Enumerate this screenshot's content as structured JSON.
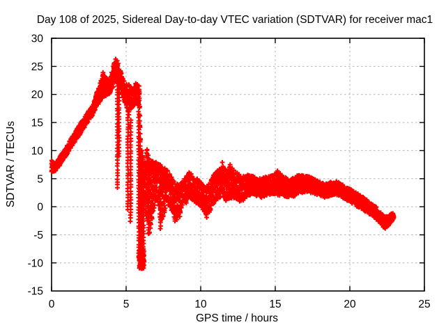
{
  "page": {
    "background": "#ffffff"
  },
  "chart_data": {
    "type": "scatter",
    "title": "Day 108 of 2025, Sidereal Day-to-day VTEC variation (SDTVAR) for receiver mac1",
    "xlabel": "GPS time / hours",
    "ylabel": "SDTVAR / TECUs",
    "marker": "plus",
    "series_color": "#ff0000",
    "grid": true,
    "grid_color": "#b3b3b3",
    "axis_color": "#000000",
    "legend": "none",
    "xlim": [
      0,
      25
    ],
    "ylim": [
      -15,
      30
    ],
    "xticks": [
      0,
      5,
      10,
      15,
      20,
      25
    ],
    "yticks": [
      -15,
      -10,
      -5,
      0,
      5,
      10,
      15,
      20,
      25,
      30
    ],
    "xtick_labels": [
      "0",
      "5",
      "10",
      "15",
      "20",
      "25"
    ],
    "ytick_labels": [
      "-15",
      "-10",
      "-5",
      "0",
      "5",
      "10",
      "15",
      "20",
      "25",
      "30"
    ],
    "x_start": 0.0,
    "x_end": 22.95,
    "band_envelope": [
      [
        0.0,
        6.2,
        8.3
      ],
      [
        0.25,
        6.3,
        7.7
      ],
      [
        0.5,
        7.2,
        8.7
      ],
      [
        0.75,
        8.2,
        9.7
      ],
      [
        1.0,
        9.2,
        10.7
      ],
      [
        1.25,
        10.3,
        11.9
      ],
      [
        1.5,
        11.3,
        13.0
      ],
      [
        1.75,
        12.3,
        14.1
      ],
      [
        2.0,
        13.3,
        15.1
      ],
      [
        2.25,
        14.3,
        16.1
      ],
      [
        2.5,
        15.3,
        17.1
      ],
      [
        2.75,
        16.3,
        18.1
      ],
      [
        3.0,
        17.5,
        20.2
      ],
      [
        3.2,
        18.5,
        21.5
      ],
      [
        3.45,
        19.5,
        23.8
      ],
      [
        3.7,
        19.8,
        23.0
      ],
      [
        3.9,
        20.0,
        22.4
      ],
      [
        4.1,
        21.0,
        24.6
      ],
      [
        4.25,
        22.0,
        26.4
      ],
      [
        4.4,
        22.0,
        26.0
      ],
      [
        4.55,
        21.0,
        24.8
      ],
      [
        4.75,
        19.8,
        23.2
      ],
      [
        5.0,
        17.8,
        21.8
      ],
      [
        5.2,
        16.0,
        21.8
      ],
      [
        5.45,
        17.2,
        21.2
      ],
      [
        5.65,
        18.8,
        22.0
      ],
      [
        5.88,
        17.5,
        21.5
      ],
      [
        6.0,
        3.0,
        11.0
      ],
      [
        6.12,
        1.0,
        9.0
      ],
      [
        6.25,
        0.0,
        8.5
      ],
      [
        6.4,
        -2.5,
        10.5
      ],
      [
        6.55,
        -4.8,
        9.0
      ],
      [
        6.7,
        -3.0,
        8.5
      ],
      [
        6.9,
        0.0,
        8.0
      ],
      [
        7.1,
        1.0,
        8.5
      ],
      [
        7.3,
        -3.8,
        7.5
      ],
      [
        7.5,
        -2.0,
        7.0
      ],
      [
        7.7,
        0.5,
        7.5
      ],
      [
        7.9,
        0.0,
        6.0
      ],
      [
        8.1,
        -1.5,
        5.0
      ],
      [
        8.3,
        -2.8,
        4.2
      ],
      [
        8.55,
        -2.2,
        4.0
      ],
      [
        8.8,
        -0.5,
        4.5
      ],
      [
        9.0,
        0.5,
        5.5
      ],
      [
        9.25,
        1.5,
        6.3
      ],
      [
        9.5,
        1.0,
        5.5
      ],
      [
        9.75,
        0.5,
        5.0
      ],
      [
        10.0,
        0.0,
        4.5
      ],
      [
        10.2,
        -1.0,
        4.0
      ],
      [
        10.4,
        -1.9,
        3.5
      ],
      [
        10.6,
        -1.0,
        4.5
      ],
      [
        10.8,
        0.0,
        5.5
      ],
      [
        11.0,
        1.0,
        6.2
      ],
      [
        11.2,
        1.5,
        6.8
      ],
      [
        11.45,
        1.5,
        7.4
      ],
      [
        11.7,
        1.0,
        6.5
      ],
      [
        12.0,
        1.5,
        7.3
      ],
      [
        12.25,
        1.5,
        6.5
      ],
      [
        12.5,
        1.0,
        6.0
      ],
      [
        12.75,
        0.8,
        5.5
      ],
      [
        13.0,
        1.5,
        5.5
      ],
      [
        13.25,
        2.0,
        5.8
      ],
      [
        13.5,
        2.0,
        5.5
      ],
      [
        13.75,
        1.8,
        5.2
      ],
      [
        14.0,
        1.5,
        5.0
      ],
      [
        14.25,
        1.8,
        5.2
      ],
      [
        14.5,
        2.0,
        5.5
      ],
      [
        14.75,
        2.2,
        5.6
      ],
      [
        15.0,
        2.3,
        5.9
      ],
      [
        15.2,
        2.0,
        6.3
      ],
      [
        15.5,
        2.0,
        5.5
      ],
      [
        15.75,
        1.8,
        5.2
      ],
      [
        16.0,
        1.5,
        5.0
      ],
      [
        16.25,
        1.8,
        5.2
      ],
      [
        16.5,
        2.2,
        5.6
      ],
      [
        16.75,
        2.4,
        5.6
      ],
      [
        17.0,
        2.6,
        5.6
      ],
      [
        17.25,
        2.6,
        5.4
      ],
      [
        17.5,
        2.4,
        5.1
      ],
      [
        17.75,
        2.2,
        4.8
      ],
      [
        18.0,
        2.0,
        4.5
      ],
      [
        18.25,
        1.6,
        4.2
      ],
      [
        18.5,
        1.8,
        4.2
      ],
      [
        18.75,
        2.0,
        4.5
      ],
      [
        19.0,
        2.2,
        4.6
      ],
      [
        19.25,
        2.0,
        4.4
      ],
      [
        19.5,
        1.6,
        4.0
      ],
      [
        19.75,
        1.2,
        3.6
      ],
      [
        20.0,
        0.8,
        3.2
      ],
      [
        20.25,
        0.4,
        2.8
      ],
      [
        20.5,
        0.0,
        2.4
      ],
      [
        20.75,
        -0.4,
        2.0
      ],
      [
        21.0,
        -0.8,
        1.5
      ],
      [
        21.25,
        -1.2,
        1.0
      ],
      [
        21.5,
        -1.6,
        0.5
      ],
      [
        21.75,
        -2.2,
        0.0
      ],
      [
        22.0,
        -2.8,
        -0.8
      ],
      [
        22.2,
        -3.6,
        -1.4
      ],
      [
        22.4,
        -3.9,
        -1.8
      ],
      [
        22.6,
        -3.4,
        -1.6
      ],
      [
        22.8,
        -2.6,
        -1.2
      ],
      [
        22.95,
        -2.2,
        -1.0
      ]
    ],
    "dropout_spikes": [
      [
        4.42,
        22.0,
        3.4
      ],
      [
        4.52,
        21.0,
        9.0
      ],
      [
        5.12,
        17.0,
        -0.5
      ],
      [
        5.3,
        15.5,
        -2.6
      ],
      [
        5.85,
        17.0,
        -9.0
      ],
      [
        5.93,
        12.0,
        -10.7
      ],
      [
        6.0,
        9.0,
        -10.5
      ],
      [
        6.07,
        7.0,
        -9.5
      ],
      [
        6.15,
        5.0,
        -7.5
      ],
      [
        6.5,
        8.5,
        -4.8
      ],
      [
        7.3,
        7.0,
        -3.9
      ]
    ],
    "dense_patches": [
      {
        "t0": 5.88,
        "t1": 6.2,
        "lo": -11.0,
        "hi": -7.6,
        "count": 90
      }
    ],
    "outlier_points": [
      [
        4.3,
        26.3
      ],
      [
        3.45,
        23.9
      ],
      [
        11.45,
        7.9
      ],
      [
        11.97,
        7.5
      ],
      [
        15.15,
        6.4
      ],
      [
        10.4,
        -1.9
      ]
    ],
    "min_value": -10.7,
    "max_value": 26.4
  }
}
